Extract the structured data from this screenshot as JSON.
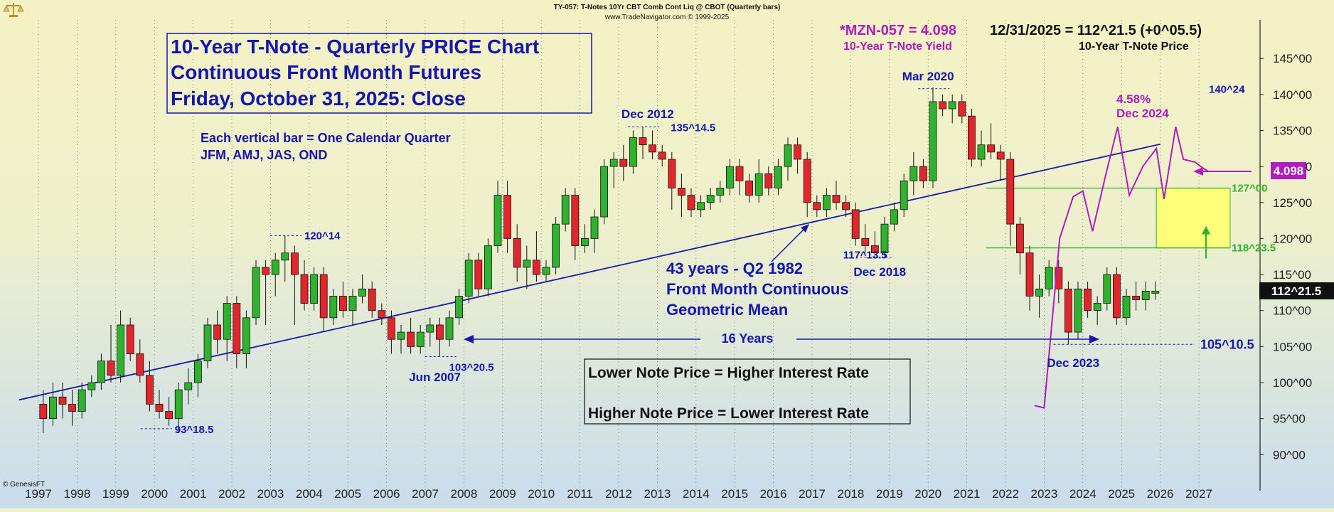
{
  "header": {
    "line1": "TY-057:  T-Notes 10Yr CBT Comb Cont Liq @ CBOT  (Quarterly bars)",
    "line2": "www.TradeNavigator.com © 1999-2025"
  },
  "legend": {
    "yield_formula": "*MZN-057 = 4.098",
    "yield_name": "10-Year T-Note Yield",
    "price_formula": "12/31/2025 = 112^21.5 (+0^05.5)",
    "price_name": "10-Year T-Note Price"
  },
  "title_box": {
    "line1": "10-Year T-Note - Quarterly PRICE Chart",
    "line2": "Continuous Front Month Futures",
    "line3": "Friday, October 31, 2025: Close"
  },
  "bar_note": {
    "line1": "Each vertical bar = One Calendar Quarter",
    "line2": "JFM, AMJ, JAS, OND"
  },
  "trend_note": {
    "line1": "43 years - Q2 1982",
    "line2": "Front Month Continuous",
    "line3": "Geometric Mean"
  },
  "span_label": "16 Years",
  "rate_box": {
    "line1": "Lower Note Price = Higher Interest Rate",
    "line2": "Higher Note Price = Lower Interest Rate"
  },
  "yield_peak_label": {
    "line1": "4.58%",
    "line2": "Dec 2024"
  },
  "copyright": "© GenesisFT",
  "value_tags": {
    "yield": "4.098",
    "price": "112^21.5"
  },
  "colors": {
    "background_top": "#f4f2c4",
    "background_bottom": "#c9dced",
    "up_candle": "#2fb32f",
    "down_candle": "#e3262b",
    "trend_line": "#1a1aa6",
    "yield_line": "#b01cc0",
    "annotation_blue": "#1515b0",
    "target_zone": "#ffff7a",
    "target_line": "#30b030"
  },
  "chart_data": {
    "type": "candlestick",
    "title": "10-Year T-Note - Quarterly PRICE Chart",
    "xlim": [
      1996.5,
      2027.5
    ],
    "ylim": [
      85,
      150
    ],
    "x_ticks": [
      "1997",
      "1998",
      "1999",
      "2000",
      "2001",
      "2002",
      "2003",
      "2004",
      "2005",
      "2006",
      "2007",
      "2008",
      "2009",
      "2010",
      "2011",
      "2012",
      "2013",
      "2014",
      "2015",
      "2016",
      "2017",
      "2018",
      "2019",
      "2020",
      "2021",
      "2022",
      "2023",
      "2024",
      "2025",
      "2026",
      "2027"
    ],
    "y_ticks": [
      {
        "v": 145,
        "label": "145^00"
      },
      {
        "v": 140,
        "label": "140^00"
      },
      {
        "v": 135,
        "label": "135^00"
      },
      {
        "v": 130,
        "label": "130^00"
      },
      {
        "v": 125,
        "label": "125^00"
      },
      {
        "v": 120,
        "label": "120^00"
      },
      {
        "v": 115,
        "label": "115^00"
      },
      {
        "v": 110,
        "label": "110^00"
      },
      {
        "v": 105,
        "label": "105^00"
      },
      {
        "v": 100,
        "label": "100^00"
      },
      {
        "v": 95,
        "label": "95^00"
      },
      {
        "v": 90,
        "label": "90^00"
      }
    ],
    "series": [
      {
        "name": "10-Year T-Note Price",
        "ohlc": [
          [
            1997.0,
            97,
            99,
            93,
            95
          ],
          [
            1997.25,
            95,
            100,
            94,
            98
          ],
          [
            1997.5,
            98,
            100,
            95,
            97
          ],
          [
            1997.75,
            97,
            99,
            94,
            96
          ],
          [
            1998.0,
            96,
            100,
            95,
            99
          ],
          [
            1998.25,
            99,
            101,
            98,
            100
          ],
          [
            1998.5,
            100,
            104,
            99,
            103
          ],
          [
            1998.75,
            103,
            108,
            100,
            101
          ],
          [
            1999.0,
            101,
            110,
            100,
            108
          ],
          [
            1999.25,
            108,
            109,
            103,
            104
          ],
          [
            1999.5,
            104,
            106,
            100,
            101
          ],
          [
            1999.75,
            101,
            103,
            96,
            97
          ],
          [
            2000.0,
            97,
            99,
            95,
            96
          ],
          [
            2000.25,
            96,
            98,
            94,
            95
          ],
          [
            2000.5,
            95,
            100,
            93,
            99
          ],
          [
            2000.75,
            99,
            102,
            97,
            100
          ],
          [
            2001.0,
            100,
            104,
            98,
            103
          ],
          [
            2001.25,
            103,
            109,
            102,
            108
          ],
          [
            2001.5,
            108,
            110,
            104,
            106
          ],
          [
            2001.75,
            106,
            112,
            103,
            111
          ],
          [
            2002.0,
            111,
            112,
            102,
            104
          ],
          [
            2002.25,
            104,
            110,
            102,
            109
          ],
          [
            2002.5,
            109,
            117,
            108,
            116
          ],
          [
            2002.75,
            116,
            117,
            108,
            115
          ],
          [
            2003.0,
            115,
            118,
            112,
            117
          ],
          [
            2003.25,
            117,
            120.4,
            114,
            118
          ],
          [
            2003.5,
            118,
            119,
            108,
            115
          ],
          [
            2003.75,
            115,
            117,
            110,
            111
          ],
          [
            2004.0,
            111,
            116,
            110,
            115
          ],
          [
            2004.25,
            115,
            116,
            107,
            109
          ],
          [
            2004.5,
            109,
            113,
            108,
            112
          ],
          [
            2004.75,
            112,
            114,
            109,
            110
          ],
          [
            2005.0,
            110,
            113,
            108,
            112
          ],
          [
            2005.25,
            112,
            115,
            111,
            113
          ],
          [
            2005.5,
            113,
            114,
            109,
            110
          ],
          [
            2005.75,
            110,
            111,
            108,
            109
          ],
          [
            2006.0,
            109,
            110,
            104,
            106
          ],
          [
            2006.25,
            106,
            108,
            104,
            107
          ],
          [
            2006.5,
            107,
            109,
            104,
            105
          ],
          [
            2006.75,
            105,
            108,
            104,
            107
          ],
          [
            2007.0,
            107,
            109,
            105,
            108
          ],
          [
            2007.25,
            108,
            109,
            103.6,
            106
          ],
          [
            2007.5,
            106,
            110,
            105,
            109
          ],
          [
            2007.75,
            109,
            113,
            108,
            112
          ],
          [
            2008.0,
            112,
            118,
            111,
            117
          ],
          [
            2008.25,
            117,
            118,
            112,
            113
          ],
          [
            2008.5,
            113,
            120,
            112,
            119
          ],
          [
            2008.75,
            119,
            128,
            118,
            126
          ],
          [
            2009.0,
            126,
            128,
            118,
            120
          ],
          [
            2009.25,
            120,
            122,
            114,
            116
          ],
          [
            2009.5,
            116,
            119,
            113,
            117
          ],
          [
            2009.75,
            117,
            121,
            114,
            115
          ],
          [
            2010.0,
            115,
            117,
            114,
            116
          ],
          [
            2010.25,
            116,
            123,
            115,
            122
          ],
          [
            2010.5,
            122,
            127,
            121,
            126
          ],
          [
            2010.75,
            126,
            127,
            117,
            119
          ],
          [
            2011.0,
            119,
            122,
            118,
            120
          ],
          [
            2011.25,
            120,
            124,
            118,
            123
          ],
          [
            2011.5,
            123,
            131,
            122,
            130
          ],
          [
            2011.75,
            130,
            132,
            127,
            131
          ],
          [
            2012.0,
            131,
            133,
            128,
            130
          ],
          [
            2012.25,
            130,
            135,
            129,
            134
          ],
          [
            2012.5,
            134,
            135.5,
            131,
            133
          ],
          [
            2012.75,
            133,
            135,
            131,
            132
          ],
          [
            2013.0,
            132,
            133,
            130,
            131
          ],
          [
            2013.25,
            131,
            132,
            124,
            127
          ],
          [
            2013.5,
            127,
            129,
            123,
            126
          ],
          [
            2013.75,
            126,
            127,
            123,
            124
          ],
          [
            2014.0,
            124,
            126,
            123,
            125
          ],
          [
            2014.25,
            125,
            127,
            124,
            126
          ],
          [
            2014.5,
            126,
            128,
            125,
            127
          ],
          [
            2014.75,
            127,
            131,
            126,
            130
          ],
          [
            2015.0,
            130,
            131,
            126,
            128
          ],
          [
            2015.25,
            128,
            129,
            125,
            126
          ],
          [
            2015.5,
            126,
            131,
            125,
            129
          ],
          [
            2015.75,
            129,
            130,
            126,
            127
          ],
          [
            2016.0,
            127,
            131,
            126,
            130
          ],
          [
            2016.25,
            130,
            134,
            128,
            133
          ],
          [
            2016.5,
            133,
            134,
            129,
            131
          ],
          [
            2016.75,
            131,
            132,
            123,
            125
          ],
          [
            2017.0,
            125,
            126,
            123,
            124
          ],
          [
            2017.25,
            124,
            127,
            123,
            126
          ],
          [
            2017.5,
            126,
            128,
            124,
            125
          ],
          [
            2017.75,
            125,
            126,
            123,
            124
          ],
          [
            2018.0,
            124,
            125,
            119,
            120
          ],
          [
            2018.25,
            120,
            122,
            118,
            119
          ],
          [
            2018.5,
            119,
            121,
            117.4,
            118
          ],
          [
            2018.75,
            118,
            123,
            117.4,
            122
          ],
          [
            2019.0,
            122,
            125,
            121,
            124
          ],
          [
            2019.25,
            124,
            129,
            123,
            128
          ],
          [
            2019.5,
            128,
            132,
            126,
            130
          ],
          [
            2019.75,
            130,
            131,
            127,
            128
          ],
          [
            2020.0,
            128,
            141,
            127,
            139
          ],
          [
            2020.25,
            139,
            140,
            137,
            138
          ],
          [
            2020.5,
            138,
            140,
            136,
            139
          ],
          [
            2020.75,
            139,
            140,
            136,
            137
          ],
          [
            2021.0,
            137,
            138,
            130,
            131
          ],
          [
            2021.25,
            131,
            135,
            130,
            133
          ],
          [
            2021.5,
            133,
            136,
            131,
            132
          ],
          [
            2021.75,
            132,
            133,
            128,
            131
          ],
          [
            2022.0,
            131,
            132,
            119,
            122
          ],
          [
            2022.25,
            122,
            123,
            115,
            118
          ],
          [
            2022.5,
            118,
            119,
            110,
            112
          ],
          [
            2022.75,
            112,
            115,
            109,
            113
          ],
          [
            2023.0,
            113,
            117,
            112,
            116
          ],
          [
            2023.25,
            116,
            117,
            111,
            113
          ],
          [
            2023.5,
            113,
            114,
            105.3,
            107
          ],
          [
            2023.75,
            107,
            114,
            106,
            113
          ],
          [
            2024.0,
            113,
            114,
            109,
            110
          ],
          [
            2024.25,
            110,
            112,
            108,
            111
          ],
          [
            2024.5,
            111,
            116,
            110,
            115
          ],
          [
            2024.75,
            115,
            116,
            108,
            109
          ],
          [
            2025.0,
            109,
            113,
            108,
            112
          ],
          [
            2025.25,
            112,
            114,
            110,
            111.5
          ],
          [
            2025.5,
            111.5,
            114,
            110,
            112.7
          ],
          [
            2025.75,
            112.4,
            114,
            111.5,
            112.7
          ]
        ]
      },
      {
        "name": "10-Year T-Note Yield",
        "values": [
          [
            2022.75,
            96.8
          ],
          [
            2023.0,
            96.5
          ],
          [
            2023.4,
            120
          ],
          [
            2023.75,
            125.8
          ],
          [
            2024.0,
            126.6
          ],
          [
            2024.25,
            121
          ],
          [
            2024.6,
            129
          ],
          [
            2024.9,
            135.5
          ],
          [
            2025.2,
            126
          ],
          [
            2025.55,
            130
          ],
          [
            2025.9,
            132.5
          ],
          [
            2026.1,
            125.5
          ],
          [
            2026.4,
            135.5
          ],
          [
            2026.6,
            131
          ],
          [
            2026.9,
            130.6
          ],
          [
            2027.1,
            129.8
          ],
          [
            2027.25,
            129.3
          ]
        ]
      },
      {
        "name": "Front Month Continuous Geometric Mean",
        "points": [
          [
            1996.5,
            97.6
          ],
          [
            2026.0,
            133.1
          ]
        ]
      }
    ],
    "annotations": {
      "price_labels": [
        {
          "text": "93^18.5",
          "x": 1999.9,
          "y": 93.6
        },
        {
          "text": "120^14",
          "x": 2003.25,
          "y": 120.4
        },
        {
          "text": "103^20.5",
          "x": 2007.25,
          "y": 103.6
        },
        {
          "text": "135^14.5",
          "x": 2012.5,
          "y": 135.5
        },
        {
          "text": "117^13.5",
          "x": 2018.5,
          "y": 117.4
        },
        {
          "text": "140^24",
          "x": 2020.0,
          "y": 140.8
        },
        {
          "text": "105^10.5",
          "x": 2023.5,
          "y": 105.3
        },
        {
          "text": "127^00",
          "x": 2027.0,
          "y": 127
        },
        {
          "text": "118^23.5",
          "x": 2027.0,
          "y": 118.7
        }
      ],
      "date_labels": [
        {
          "text": "Jun 2007",
          "x": 2007.25
        },
        {
          "text": "Dec 2012",
          "x": 2012.75
        },
        {
          "text": "Dec 2018",
          "x": 2018.75
        },
        {
          "text": "Mar 2020",
          "x": 2020.0
        },
        {
          "text": "Dec 2023",
          "x": 2023.75
        }
      ],
      "target_zone": {
        "y_low": 118.7,
        "y_high": 127,
        "x_start": 2025.9
      }
    }
  }
}
